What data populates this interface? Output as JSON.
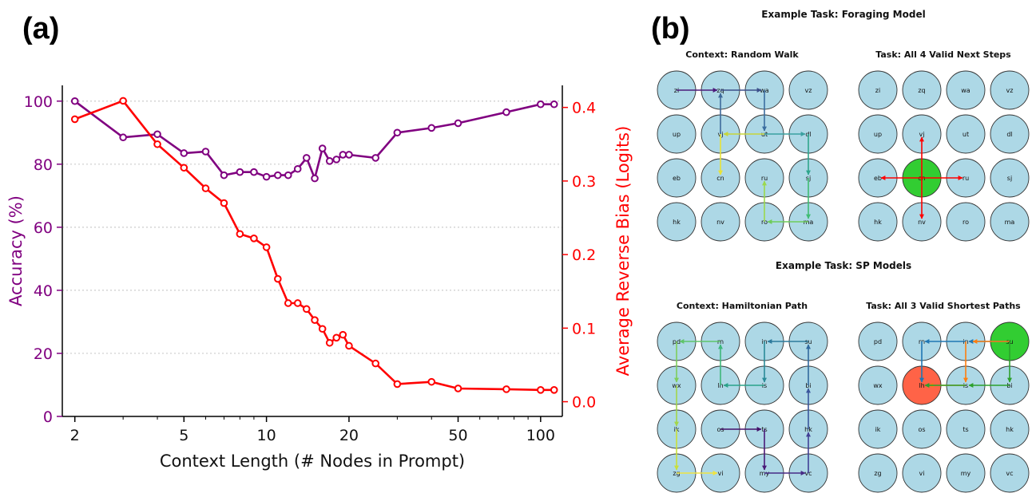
{
  "panel_labels": {
    "a": "(a)",
    "b": "(b)"
  },
  "colors": {
    "accuracy": "#800080",
    "bias": "#ff0000",
    "node_fill": "#add8e6",
    "green": "#32cd32",
    "red_node": "#ff6347",
    "forage_arrow": "#ff0000",
    "sp_blue": "#1f77b4",
    "sp_orange": "#ff7f0e",
    "sp_green": "#2ca02c"
  },
  "chart_data": {
    "type": "line",
    "xscale": "log",
    "xlabel": "Context Length (# Nodes in Prompt)",
    "ylabel_left": "Accuracy (%)",
    "ylabel_right": "Average Reverse Bias (Logits)",
    "xlim": [
      1.8,
      120
    ],
    "ylim_left": [
      0,
      105
    ],
    "ylim_right": [
      -0.02,
      0.43
    ],
    "xticks": [
      2,
      5,
      10,
      20,
      50,
      100
    ],
    "xtick_labels": [
      "2",
      "5",
      "10",
      "20",
      "50",
      "100"
    ],
    "yticks_left": [
      0,
      20,
      40,
      60,
      80,
      100
    ],
    "ytick_labels_left": [
      "0",
      "20",
      "40",
      "60",
      "80",
      "100"
    ],
    "yticks_right": [
      0.0,
      0.1,
      0.2,
      0.3,
      0.4
    ],
    "ytick_labels_right": [
      "0.0",
      "0.1",
      "0.2",
      "0.3",
      "0.4"
    ],
    "gridlines": "horizontal dotted",
    "series": [
      {
        "name": "Accuracy",
        "axis": "left",
        "x": [
          2,
          3,
          4,
          5,
          6,
          7,
          8,
          9,
          10,
          11,
          12,
          13,
          14,
          15,
          16,
          17,
          18,
          19,
          20,
          25,
          30,
          40,
          50,
          75,
          100,
          112
        ],
        "y": [
          100,
          88.5,
          89.5,
          83.5,
          84,
          76.5,
          77.5,
          77.5,
          76,
          76.5,
          76.5,
          78.5,
          82,
          75.5,
          85,
          81,
          81.5,
          83,
          83,
          82,
          90,
          91.5,
          93,
          96.5,
          99,
          99
        ]
      },
      {
        "name": "Average Reverse Bias",
        "axis": "right",
        "x": [
          2,
          3,
          4,
          5,
          6,
          7,
          8,
          9,
          10,
          11,
          12,
          13,
          14,
          15,
          16,
          17,
          18,
          19,
          20,
          25,
          30,
          40,
          50,
          75,
          100,
          112
        ],
        "y": [
          0.384,
          0.409,
          0.35,
          0.318,
          0.29,
          0.27,
          0.228,
          0.222,
          0.21,
          0.167,
          0.134,
          0.134,
          0.126,
          0.111,
          0.099,
          0.08,
          0.087,
          0.091,
          0.076,
          0.052,
          0.024,
          0.027,
          0.018,
          0.017,
          0.016,
          0.016
        ]
      }
    ]
  },
  "grids": {
    "foraging": {
      "title": "Example Task: Foraging Model",
      "context": {
        "title": "Context: Random Walk",
        "labels": [
          [
            "zi",
            "zq",
            "wa",
            "vz"
          ],
          [
            "up",
            "vj",
            "ut",
            "dl"
          ],
          [
            "eb",
            "cn",
            "ru",
            "sj"
          ],
          [
            "hk",
            "nv",
            "ro",
            "ma"
          ]
        ]
      },
      "task": {
        "title": "Task: All 4 Valid Next Steps",
        "labels": [
          [
            "zi",
            "zq",
            "wa",
            "vz"
          ],
          [
            "up",
            "vj",
            "ut",
            "dl"
          ],
          [
            "eb",
            "cn",
            "ru",
            "sj"
          ],
          [
            "hk",
            "nv",
            "ro",
            "ma"
          ]
        ]
      }
    },
    "sp": {
      "title": "Example Task: SP Models",
      "context": {
        "title": "Context: Hamiltonian Path",
        "labels": [
          [
            "pd",
            "rn",
            "in",
            "su"
          ],
          [
            "wx",
            "lh",
            "is",
            "bi"
          ],
          [
            "ik",
            "os",
            "ts",
            "hk"
          ],
          [
            "zg",
            "vi",
            "my",
            "vc"
          ]
        ]
      },
      "task": {
        "title": "Task: All 3 Valid Shortest Paths",
        "labels": [
          [
            "pd",
            "rn",
            "in",
            "su"
          ],
          [
            "wx",
            "lh",
            "is",
            "bi"
          ],
          [
            "ik",
            "os",
            "ts",
            "hk"
          ],
          [
            "zg",
            "vi",
            "my",
            "vc"
          ]
        ]
      }
    }
  }
}
